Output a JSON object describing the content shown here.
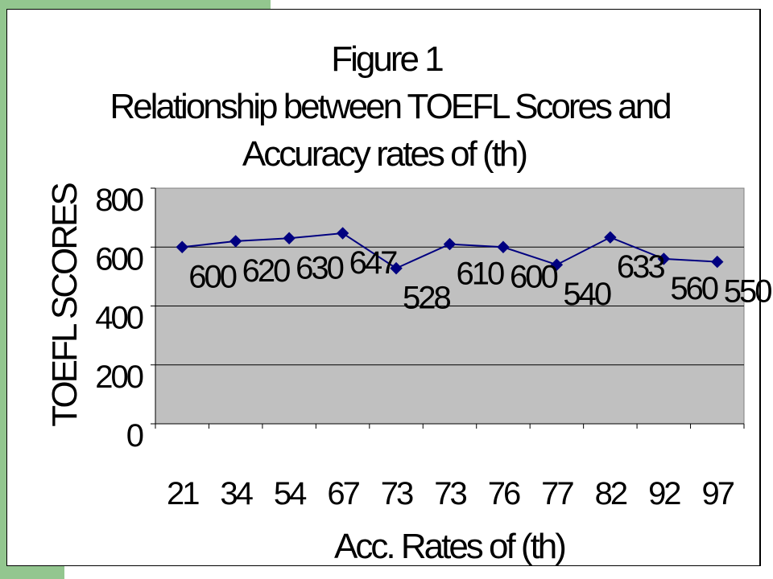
{
  "chart_data": {
    "type": "line",
    "title_lines": [
      "Figure 1",
      "Relationship between TOEFL Scores and",
      "Accuracy rates of (th)"
    ],
    "xlabel": "Acc. Rates of (th)",
    "ylabel": "TOEFL SCORES",
    "categories": [
      "21",
      "34",
      "54",
      "67",
      "73",
      "73",
      "76",
      "77",
      "82",
      "92",
      "97"
    ],
    "series": [
      {
        "name": "",
        "values": [
          600,
          620,
          630,
          647,
          528,
          610,
          600,
          540,
          633,
          560,
          550
        ],
        "color": "#000080"
      }
    ],
    "data_labels": [
      "600",
      "620",
      "630",
      "647",
      "528",
      "610",
      "600",
      "540",
      "633",
      "560",
      "550"
    ],
    "ylim": [
      0,
      800
    ],
    "yticks": [
      "0",
      "200",
      "400",
      "600",
      "800"
    ],
    "grid": true,
    "plot_background": "#c0c0c0",
    "legend": "none"
  }
}
